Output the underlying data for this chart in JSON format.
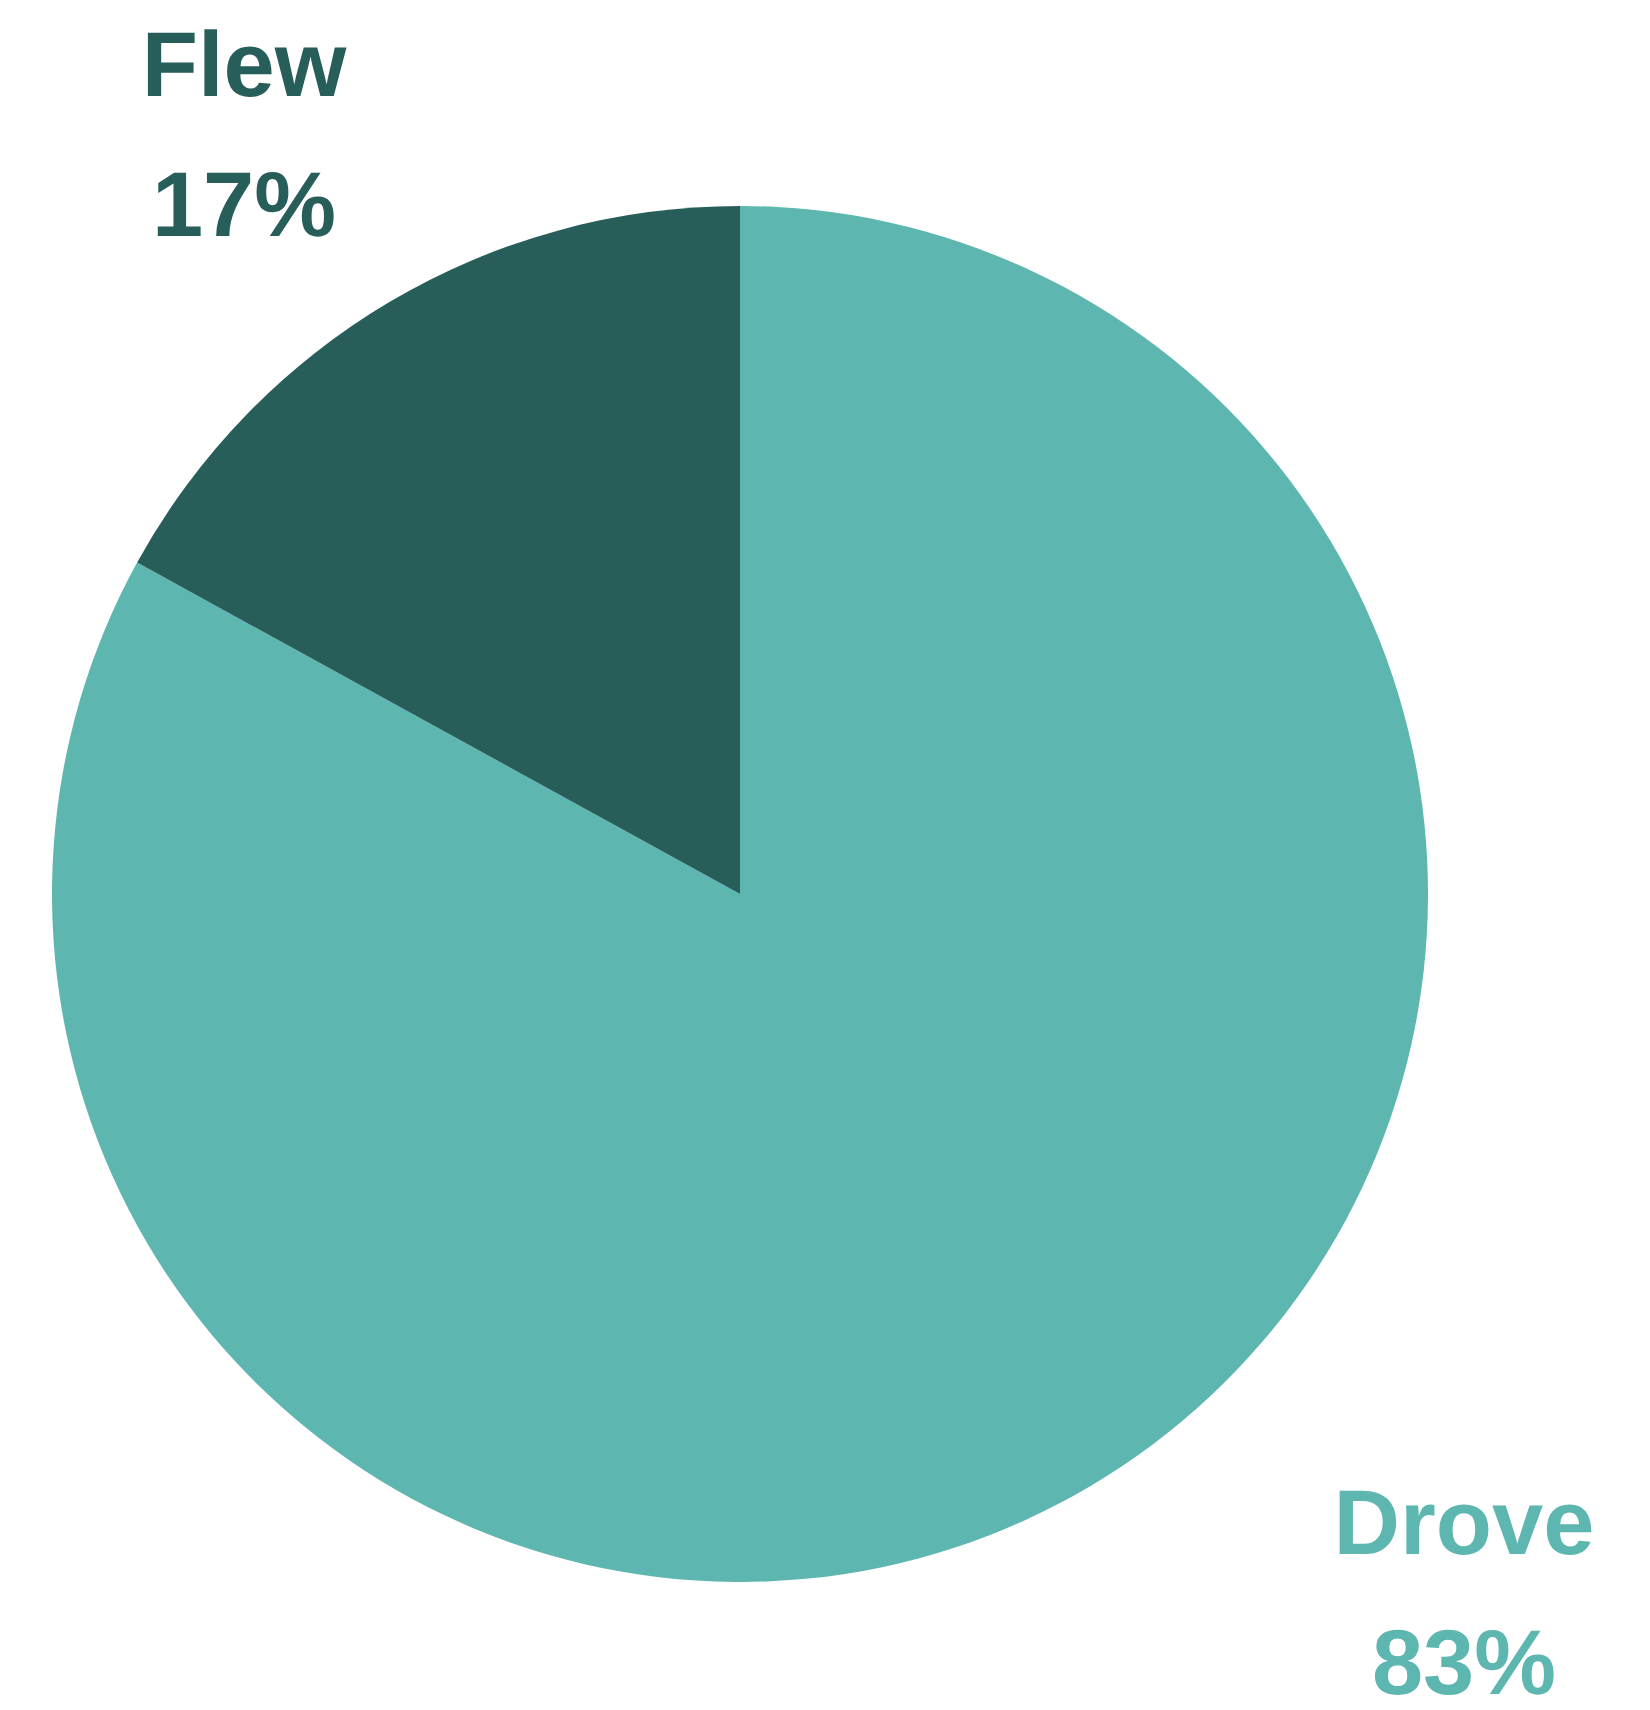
{
  "chart_data": {
    "type": "pie",
    "categories": [
      "Drove",
      "Flew"
    ],
    "values": [
      83,
      17
    ],
    "value_labels": [
      "83%",
      "17%"
    ],
    "colors": [
      "#5db7b0",
      "#285e5a"
    ]
  }
}
